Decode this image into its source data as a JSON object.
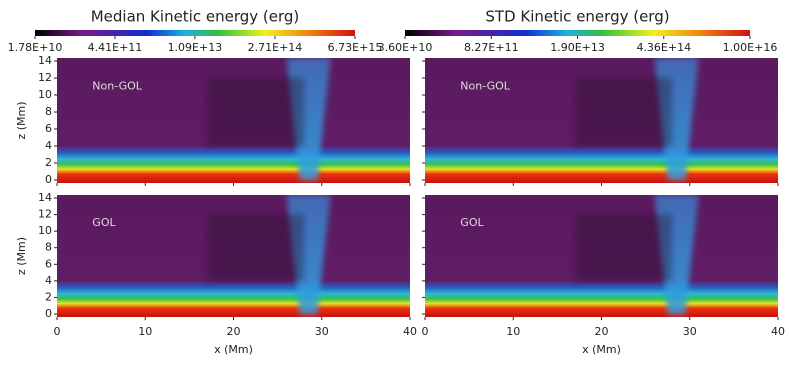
{
  "chart_data": [
    {
      "type": "heatmap",
      "title": "Median Kinetic energy (erg)",
      "colorbar": {
        "log": true,
        "lim": [
          17800000000.0,
          6730000000000000.0
        ],
        "ticks": [
          {
            "value": 17800000000.0,
            "label": "1.78E+10"
          },
          {
            "value": 441000000000.0,
            "label": "4.41E+11"
          },
          {
            "value": 10900000000000.0,
            "label": "1.09E+13"
          },
          {
            "value": 271000000000000.0,
            "label": "2.71E+14"
          },
          {
            "value": 6730000000000000.0,
            "label": "6.73E+15"
          }
        ]
      },
      "panels": [
        {
          "label": "Non-GOL"
        },
        {
          "label": "GOL"
        }
      ],
      "xlabel": "x (Mm)",
      "xlim": [
        0,
        40
      ],
      "xticks": [
        0,
        10,
        20,
        30,
        40
      ],
      "ylabel": "z (Mm)",
      "ylim": [
        0,
        14
      ],
      "yticks": [
        0,
        2,
        4,
        6,
        8,
        10,
        12,
        14
      ]
    },
    {
      "type": "heatmap",
      "title": "STD Kinetic energy (erg)",
      "colorbar": {
        "log": true,
        "lim": [
          36000000000.0,
          1e+16
        ],
        "ticks": [
          {
            "value": 36000000000.0,
            "label": "3.60E+10"
          },
          {
            "value": 827000000000.0,
            "label": "8.27E+11"
          },
          {
            "value": 19000000000000.0,
            "label": "1.90E+13"
          },
          {
            "value": 436000000000000.0,
            "label": "4.36E+14"
          },
          {
            "value": 1e+16,
            "label": "1.00E+16"
          }
        ]
      },
      "panels": [
        {
          "label": "Non-GOL"
        },
        {
          "label": "GOL"
        }
      ],
      "xlabel": "x (Mm)",
      "xlim": [
        0,
        40
      ],
      "xticks": [
        0,
        10,
        20,
        30,
        40
      ],
      "ylim": [
        0,
        14
      ],
      "yticks": [
        0,
        2,
        4,
        6,
        8,
        10,
        12,
        14
      ]
    }
  ]
}
